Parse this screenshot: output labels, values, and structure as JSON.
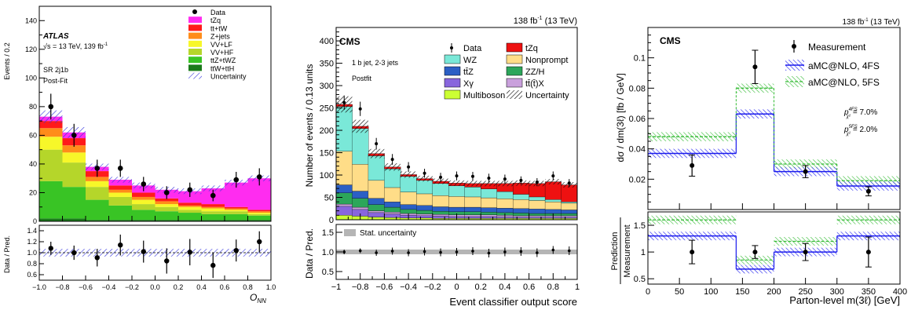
{
  "chart_data": [
    {
      "type": "bar",
      "stacked": true,
      "panel": "left",
      "experiment": "ATLAS",
      "energy_label": "√s = 13 TeV, 139 fb⁻¹",
      "region_label": "SR 2j1b",
      "fit_label": "Post-Fit",
      "ylabel": "Events / 0.2",
      "xlabel": "O_NN",
      "ratio_ylabel": "Data / Pred.",
      "ylim": [
        0,
        150
      ],
      "xlim": [
        -1,
        1
      ],
      "bin_edges": [
        -1.0,
        -0.8,
        -0.6,
        -0.4,
        -0.2,
        0.0,
        0.2,
        0.4,
        0.6,
        0.8,
        1.0
      ],
      "series": [
        {
          "name": "ttW+ttH",
          "color": "#1a7a1a",
          "values": [
            2,
            2,
            1,
            1,
            1,
            1,
            1,
            1,
            1,
            1
          ]
        },
        {
          "name": "ttZ+tWZ",
          "color": "#39c425",
          "values": [
            26,
            22,
            14,
            10,
            7,
            6,
            5,
            4,
            4,
            3
          ]
        },
        {
          "name": "VV+HF",
          "color": "#b5d62a",
          "values": [
            22,
            17,
            9,
            6,
            4,
            3,
            2,
            2,
            2,
            1
          ]
        },
        {
          "name": "VV+LF",
          "color": "#f7f729",
          "values": [
            9,
            7,
            4,
            3,
            3,
            2,
            2,
            2,
            1,
            1
          ]
        },
        {
          "name": "Z+jets",
          "color": "#ff8c1a",
          "values": [
            6,
            5,
            3,
            2,
            2,
            2,
            1,
            1,
            1,
            1
          ]
        },
        {
          "name": "tt+tW",
          "color": "#ff1a1a",
          "values": [
            5,
            5,
            4,
            3,
            3,
            2,
            2,
            2,
            1,
            1
          ]
        },
        {
          "name": "tZq",
          "color": "#ff2cf0",
          "values": [
            3,
            4,
            3,
            4,
            5,
            6,
            8,
            11,
            17,
            22
          ]
        }
      ],
      "data": {
        "x": [
          -0.9,
          -0.7,
          -0.5,
          -0.3,
          -0.1,
          0.1,
          0.3,
          0.5,
          0.7,
          0.9
        ],
        "y": [
          80,
          60,
          37,
          37,
          26,
          20,
          22,
          18,
          29,
          31
        ],
        "err": [
          9,
          8,
          6,
          6,
          5,
          4.5,
          5,
          4,
          5.5,
          6
        ]
      },
      "legend": [
        "Data",
        "tZq",
        "tt+tW",
        "Z+jets",
        "VV+LF",
        "VV+HF",
        "ttZ+tWZ",
        "ttW+ttH",
        "Uncertainty"
      ],
      "ratio": {
        "ylim": [
          0.5,
          1.5
        ],
        "y": [
          1.08,
          1.0,
          0.91,
          1.14,
          1.02,
          0.85,
          1.01,
          0.77,
          1.04,
          1.2
        ],
        "err": [
          0.12,
          0.13,
          0.16,
          0.19,
          0.2,
          0.23,
          0.24,
          0.23,
          0.2,
          0.19
        ]
      }
    },
    {
      "type": "bar",
      "stacked": true,
      "panel": "middle",
      "experiment": "CMS",
      "lumi_label": "138 fb⁻¹ (13 TeV)",
      "region_label": "1 b jet, 2-3 jets",
      "fit_label": "Postfit",
      "ylabel": "Number of events / 0.13 units",
      "xlabel": "Event classifier output score",
      "ratio_ylabel": "Data / Pred.",
      "ratio_legend": "Stat. uncertainty",
      "ylim": [
        0,
        430
      ],
      "xlim": [
        -1,
        1
      ],
      "series": [
        {
          "name": "Multiboson",
          "color": "#ccff33",
          "values": [
            10,
            8,
            6,
            5,
            4,
            4,
            3,
            3,
            3,
            3,
            3,
            3,
            3,
            3,
            3
          ]
        },
        {
          "name": "Xγ",
          "color": "#8866dd",
          "values": [
            20,
            15,
            10,
            8,
            6,
            5,
            5,
            4,
            4,
            4,
            3,
            3,
            3,
            3,
            3
          ]
        },
        {
          "name": "tt̄(t̄)X",
          "color": "#c9a0dc",
          "values": [
            5,
            5,
            4,
            4,
            4,
            4,
            4,
            4,
            4,
            4,
            4,
            3,
            3,
            3,
            3
          ]
        },
        {
          "name": "ZZ/H",
          "color": "#2ca65a",
          "values": [
            25,
            20,
            14,
            11,
            9,
            8,
            7,
            7,
            7,
            6,
            6,
            6,
            5,
            5,
            5
          ]
        },
        {
          "name": "tt̄Z",
          "color": "#2b5fc4",
          "values": [
            18,
            16,
            14,
            12,
            11,
            11,
            10,
            10,
            10,
            10,
            10,
            10,
            10,
            9,
            8
          ]
        },
        {
          "name": "Nonprompt",
          "color": "#ffdd88",
          "values": [
            75,
            60,
            40,
            32,
            28,
            26,
            25,
            24,
            23,
            22,
            21,
            20,
            19,
            17,
            15
          ]
        },
        {
          "name": "WZ",
          "color": "#7ae8d8",
          "values": [
            100,
            80,
            55,
            42,
            35,
            30,
            27,
            24,
            22,
            20,
            16,
            12,
            8,
            5,
            3
          ]
        },
        {
          "name": "tZq",
          "color": "#ee1111",
          "values": [
            5,
            5,
            5,
            4,
            4,
            4,
            5,
            6,
            8,
            12,
            18,
            25,
            30,
            40,
            38
          ]
        }
      ],
      "data": {
        "y": [
          262,
          248,
          170,
          135,
          118,
          104,
          95,
          98,
          97,
          93,
          91,
          88,
          84,
          98,
          82
        ],
        "err": [
          16,
          16,
          13,
          12,
          11,
          10,
          10,
          10,
          10,
          10,
          10,
          9,
          9,
          10,
          9
        ]
      },
      "legend": [
        "Data",
        "tZq",
        "WZ",
        "Nonprompt",
        "tt̄Z",
        "ZZ/H",
        "Xγ",
        "tt̄(t̄)X",
        "Multiboson",
        "Uncertainty"
      ],
      "ratio": {
        "ylim": [
          0.3,
          1.7
        ],
        "y": [
          1.0,
          1.03,
          0.98,
          1.02,
          0.98,
          1.01,
          0.99,
          1.0,
          1.02,
          0.97,
          1.0,
          1.01,
          0.98,
          1.05,
          1.03
        ],
        "err": [
          0.06,
          0.06,
          0.08,
          0.09,
          0.09,
          0.1,
          0.1,
          0.1,
          0.1,
          0.11,
          0.11,
          0.11,
          0.11,
          0.1,
          0.11
        ]
      }
    },
    {
      "type": "line",
      "panel": "right",
      "experiment": "CMS",
      "lumi_label": "138 fb⁻¹ (13 TeV)",
      "ylabel": "dσ / dm(3ℓ)   [fb / GeV]",
      "xlabel": "Parton-level m(3ℓ)   [GeV]",
      "ratio_ylabel": [
        "Prediction",
        "Measurement"
      ],
      "ylim": [
        0,
        0.12
      ],
      "xlim": [
        0,
        400
      ],
      "bin_edges": [
        0,
        140,
        200,
        300,
        400
      ],
      "measurement": {
        "name": "Measurement",
        "x": [
          70,
          170,
          250,
          350
        ],
        "y": [
          0.029,
          0.094,
          0.025,
          0.012
        ],
        "err": [
          0.007,
          0.011,
          0.004,
          0.003
        ]
      },
      "predictions": [
        {
          "name": "aMC@NLO, 4FS",
          "color": "#1a1aee",
          "values": [
            0.037,
            0.063,
            0.025,
            0.0155
          ],
          "unc": 0.003
        },
        {
          "name": "aMC@NLO, 5FS",
          "color": "#33bb33",
          "values": [
            0.048,
            0.08,
            0.03,
            0.019
          ],
          "unc": 0.003
        }
      ],
      "annotations": [
        "p^{4FS}_{χ²} = 7.0%",
        "p^{5FS}_{χ²} = 2.0%"
      ],
      "ratio": {
        "ylim": [
          0.4,
          1.75
        ],
        "y": [
          1.0,
          1.0,
          1.0,
          1.0
        ],
        "err": [
          0.22,
          0.12,
          0.16,
          0.28
        ],
        "pred4": [
          1.3,
          0.68,
          1.0,
          1.3
        ],
        "pred5": [
          1.6,
          0.85,
          1.2,
          1.6
        ]
      }
    }
  ],
  "texts": {
    "p1": {
      "experiment": "ATLAS",
      "energy": "√s = 13 TeV, 139 fb",
      "energy_sup": "-1",
      "region": "SR 2j1b",
      "fit": "Post-Fit",
      "ylabel": "Events / 0.2",
      "ratio_ylabel": "Data / Pred.",
      "xlabel": "O",
      "xlabel_sub": "NN"
    },
    "p2": {
      "experiment": "CMS",
      "lumi": "138 fb",
      "lumi_sup": "-1",
      "lumi_rest": " (13 TeV)",
      "region": "1 b jet, 2-3 jets",
      "fit": "Postfit",
      "ylabel": "Number of events / 0.13 units",
      "ratio_ylabel": "Data / Pred.",
      "xlabel": "Event classifier output score",
      "stat_unc": "Stat. uncertainty"
    },
    "p3": {
      "experiment": "CMS",
      "lumi": "138 fb",
      "lumi_sup": "-1",
      "lumi_rest": " (13 TeV)",
      "ylabel": "dσ / dm(3ℓ)   [fb / GeV]",
      "ratio_ylabel_top": "Prediction",
      "ratio_ylabel_bottom": "Measurement",
      "xlabel": "Parton-level m(3ℓ)   [GeV]",
      "p4": "= 7.0%",
      "p5": "= 2.0%",
      "p_sup4": "4FS",
      "p_sup5": "5FS",
      "p_sub": "χ²"
    }
  }
}
